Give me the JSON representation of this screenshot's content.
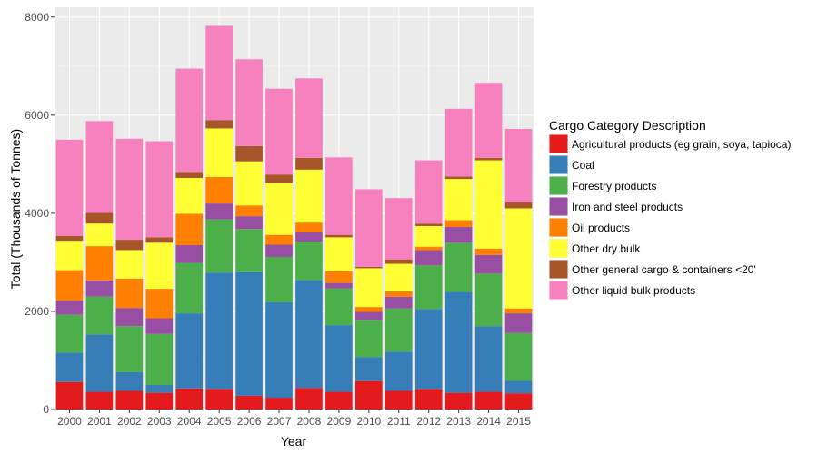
{
  "chart_data": {
    "type": "bar",
    "stacked": true,
    "xlabel": "Year",
    "ylabel": "Total (Thousands of Tonnes)",
    "ylim": [
      0,
      8200
    ],
    "yticks": [
      0,
      2000,
      4000,
      6000,
      8000
    ],
    "grid": true,
    "legend_position": "right",
    "legend_title": "Cargo Category Description",
    "categories": [
      "2000",
      "2001",
      "2002",
      "2003",
      "2004",
      "2005",
      "2006",
      "2007",
      "2008",
      "2009",
      "2010",
      "2011",
      "2012",
      "2013",
      "2014",
      "2015"
    ],
    "series": [
      {
        "name": "Agricultural products (eg grain, soya, tapioca)",
        "color": "#E41A1C",
        "values": [
          560,
          360,
          380,
          340,
          430,
          420,
          280,
          240,
          440,
          360,
          580,
          380,
          420,
          340,
          360,
          330
        ]
      },
      {
        "name": "Coal",
        "color": "#377EB8",
        "values": [
          600,
          1170,
          380,
          160,
          1530,
          2370,
          2520,
          1950,
          2200,
          1360,
          490,
          800,
          1630,
          2060,
          1340,
          260
        ]
      },
      {
        "name": "Forestry products",
        "color": "#4DAF4A",
        "values": [
          770,
          770,
          940,
          1040,
          1030,
          1090,
          880,
          920,
          780,
          750,
          760,
          880,
          890,
          1000,
          1070,
          970
        ]
      },
      {
        "name": "Iron and steel products",
        "color": "#984EA3",
        "values": [
          290,
          330,
          370,
          320,
          360,
          320,
          260,
          250,
          190,
          110,
          160,
          240,
          310,
          320,
          380,
          400
        ]
      },
      {
        "name": "Oil products",
        "color": "#FF7F00",
        "values": [
          620,
          700,
          600,
          600,
          640,
          540,
          220,
          200,
          200,
          240,
          100,
          110,
          70,
          140,
          130,
          100
        ]
      },
      {
        "name": "Other dry bulk",
        "color": "#FFFF33",
        "values": [
          600,
          460,
          580,
          940,
          730,
          990,
          900,
          1050,
          1080,
          690,
          790,
          560,
          420,
          840,
          1800,
          2040
        ]
      },
      {
        "name": "Other general cargo & containers <20'",
        "color": "#A65628",
        "values": [
          100,
          220,
          210,
          110,
          120,
          170,
          310,
          180,
          240,
          50,
          30,
          90,
          50,
          50,
          50,
          120
        ]
      },
      {
        "name": "Other liquid bulk products",
        "color": "#F781BF",
        "values": [
          1960,
          1870,
          2060,
          1960,
          2110,
          1920,
          1770,
          1750,
          1620,
          1580,
          1580,
          1250,
          1290,
          1380,
          1530,
          1500
        ]
      }
    ]
  }
}
